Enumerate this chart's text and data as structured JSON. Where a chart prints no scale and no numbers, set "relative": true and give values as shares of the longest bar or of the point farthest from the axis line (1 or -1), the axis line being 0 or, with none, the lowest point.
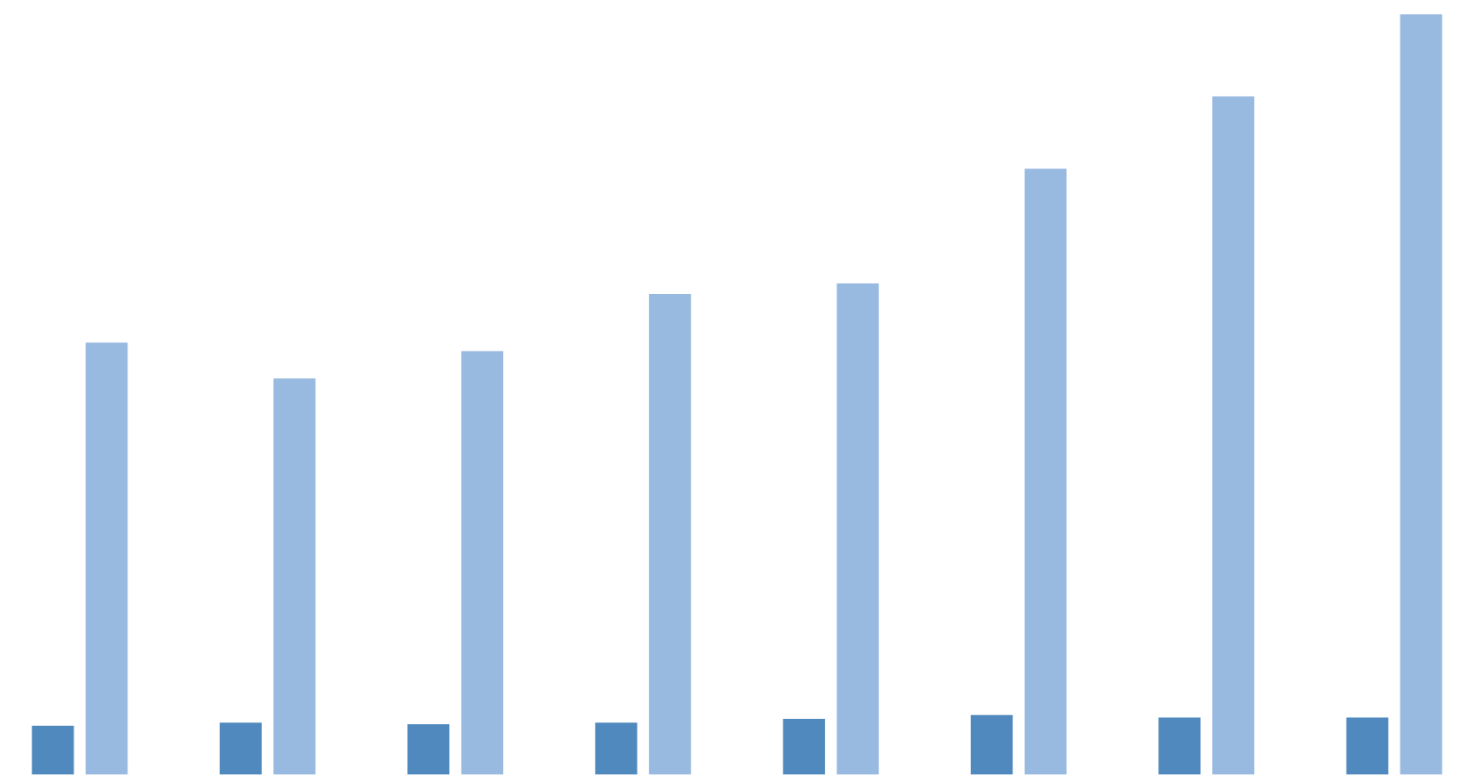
{
  "chart_data": {
    "type": "bar",
    "relative": true,
    "categories": [
      null,
      null,
      null,
      null,
      null,
      null,
      null,
      null
    ],
    "series": [
      {
        "color": "#4f89bd",
        "values": [
          0.064,
          0.068,
          0.066,
          0.068,
          0.073,
          0.078,
          0.075,
          0.075
        ]
      },
      {
        "color": "#98b9e0",
        "values": [
          0.568,
          0.521,
          0.557,
          0.632,
          0.646,
          0.797,
          0.892,
          1
        ]
      }
    ]
  }
}
